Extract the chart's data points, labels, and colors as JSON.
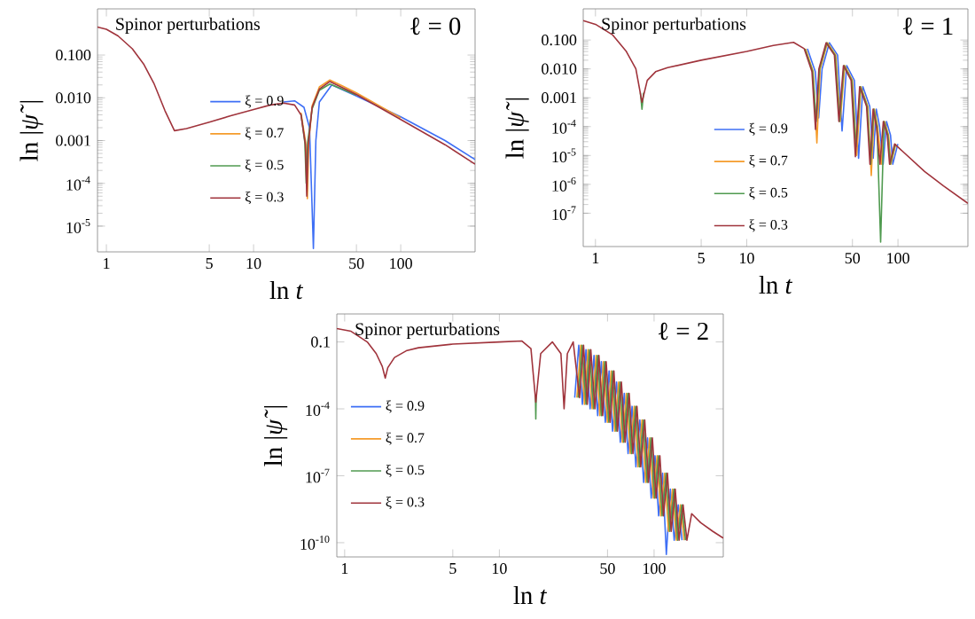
{
  "chart_data": [
    {
      "type": "line",
      "xlabel": "ln *t*",
      "ylabel": "ln |*ψ̃*|",
      "log": "xy",
      "legend": "center",
      "grid": false,
      "annotations": [
        "Spinor perturbations",
        "ℓ = 0"
      ],
      "xlim": [
        0.87,
        320
      ],
      "ylim": [
        2.5e-06,
        1.2
      ],
      "xticks": [
        1,
        5,
        10,
        50,
        100
      ],
      "yticks": [
        {
          "value": 1e-05,
          "label": "10$^{-5}$"
        },
        {
          "value": 0.0001,
          "label": "10$^{-4}$"
        },
        {
          "value": 0.001,
          "label": "0.001"
        },
        {
          "value": 0.01,
          "label": "0.010"
        },
        {
          "value": 0.1,
          "label": "0.100"
        }
      ],
      "series": [
        {
          "name": "ξ = 0.9",
          "color": "#3e6ff5",
          "x": [
            16,
            19,
            22,
            24,
            25.5,
            26.5,
            28,
            34,
            50,
            100,
            200,
            320
          ],
          "values": [
            0.008,
            0.0085,
            0.006,
            0.002,
            3e-06,
            0.001,
            0.008,
            0.02,
            0.011,
            0.0036,
            0.001,
            0.00036
          ]
        },
        {
          "name": "ξ = 0.7",
          "color": "#f59b2a",
          "x": [
            21,
            22.6,
            23.2,
            23.7,
            25,
            28,
            33,
            40,
            50,
            100
          ],
          "values": [
            0.0045,
            0.0009,
            4.4e-05,
            0.0009,
            0.0065,
            0.018,
            0.026,
            0.019,
            0.013,
            0.0034
          ]
        },
        {
          "name": "ξ = 0.5",
          "color": "#4f9a4f",
          "x": [
            21,
            22.3,
            22.8,
            23.3,
            25,
            28,
            33,
            40,
            50
          ],
          "values": [
            0.0041,
            0.0009,
            0.0001,
            0.0009,
            0.0055,
            0.015,
            0.021,
            0.016,
            0.0115
          ]
        },
        {
          "name": "ξ = 0.3",
          "color": "#a0343c",
          "x": [
            0.87,
            1,
            1.2,
            1.5,
            1.8,
            2.1,
            2.5,
            2.9,
            3.5,
            5,
            7,
            10,
            13,
            16,
            19,
            21,
            22.5,
            23,
            23.5,
            25,
            28,
            33,
            50,
            100,
            200,
            320
          ],
          "values": [
            0.45,
            0.4,
            0.28,
            0.14,
            0.06,
            0.022,
            0.005,
            0.0017,
            0.0019,
            0.0027,
            0.0038,
            0.0053,
            0.0068,
            0.0075,
            0.0068,
            0.004,
            0.0008,
            5e-05,
            0.0008,
            0.006,
            0.016,
            0.024,
            0.012,
            0.0031,
            0.0008,
            0.00028
          ]
        }
      ]
    },
    {
      "type": "line",
      "xlabel": "ln *t*",
      "ylabel": "ln |*ψ̃*|",
      "log": "xy",
      "legend": "bottom",
      "grid": false,
      "annotations": [
        "Spinor perturbations",
        "ℓ = 1"
      ],
      "xlim": [
        0.83,
        290
      ],
      "ylim": [
        7e-09,
        1.2
      ],
      "xticks": [
        1,
        5,
        10,
        50,
        100
      ],
      "yticks": [
        {
          "value": 1e-07,
          "label": "10$^{-7}$"
        },
        {
          "value": 1e-06,
          "label": "10$^{-6}$"
        },
        {
          "value": 1e-05,
          "label": "10$^{-5}$"
        },
        {
          "value": 0.0001,
          "label": "10$^{-4}$"
        },
        {
          "value": 0.001,
          "label": "0.001"
        },
        {
          "value": 0.01,
          "label": "0.010"
        },
        {
          "value": 0.1,
          "label": "0.100"
        }
      ],
      "series": [
        {
          "name": "ξ = 0.9",
          "color": "#3e6ff5",
          "x": [
            25.2,
            28.4,
            29.9,
            31.5,
            35.2,
            39.9,
            42.7,
            45.8,
            51.5,
            54.9,
            58.6,
            65.1,
            68.6,
            71.9,
            75.6,
            79.8,
            84,
            89.3,
            92.4,
            99.8
          ],
          "values": [
            0.05,
            0.008,
            0.0002,
            0.01,
            0.08,
            0.03,
            7e-05,
            0.013,
            0.004,
            8e-06,
            0.0024,
            0.0005,
            8e-06,
            0.0004,
            0.0001,
            5e-06,
            0.00015,
            5e-05,
            5e-06,
            2.5e-05
          ]
        },
        {
          "name": "ξ = 0.7",
          "color": "#f59b2a",
          "x": [
            24.5,
            27.5,
            29.1,
            30.6,
            34.2,
            38.8,
            41.5,
            44.5,
            50,
            53.3,
            56.9,
            63.2,
            66.6,
            69.9,
            73.4,
            77.5,
            81.6,
            86.7,
            89.8,
            96.9
          ],
          "values": [
            0.05,
            0.008,
            2.7e-05,
            0.01,
            0.08,
            0.03,
            0.00015,
            0.013,
            0.004,
            1e-05,
            0.0024,
            0.0005,
            2e-06,
            0.0004,
            0.0001,
            5e-06,
            0.00015,
            5e-05,
            5e-06,
            2.5e-05
          ]
        },
        {
          "name": "ξ = 0.5",
          "color": "#4f9a4f",
          "x": [
            1.98,
            2.03,
            2.08,
            10,
            24.2,
            27.3,
            28.8,
            30.3,
            33.8,
            38.4,
            41.1,
            44,
            49.5,
            52.8,
            56.4,
            62.6,
            66,
            69.2,
            72.7,
            76.8,
            80.8,
            85.9,
            88.9,
            96
          ],
          "values": [
            0.0015,
            0.0004,
            0.0015,
            null,
            0.05,
            0.008,
            0.00015,
            0.01,
            0.08,
            0.03,
            0.00015,
            0.013,
            0.004,
            2e-05,
            0.0024,
            0.0005,
            5e-06,
            0.0004,
            0.0001,
            1e-08,
            0.00015,
            5e-05,
            5e-06,
            2.5e-05
          ]
        },
        {
          "name": "ξ = 0.3",
          "color": "#a0343c",
          "x": [
            0.83,
            1,
            1.3,
            1.6,
            1.85,
            2.03,
            2.2,
            2.5,
            3,
            5,
            10,
            15,
            20.4,
            24,
            27,
            28.5,
            30,
            33.5,
            38,
            40.7,
            43.6,
            49,
            52.3,
            55.8,
            62,
            65.3,
            68.5,
            72,
            76,
            80,
            85,
            88,
            95,
            150,
            200,
            290
          ],
          "values": [
            0.47,
            0.35,
            0.15,
            0.04,
            0.01,
            0.0007,
            0.004,
            0.008,
            0.011,
            0.02,
            0.04,
            0.065,
            0.083,
            0.05,
            0.008,
            8e-05,
            0.01,
            0.08,
            0.03,
            0.00015,
            0.013,
            0.004,
            9e-06,
            0.0024,
            0.0005,
            5e-06,
            0.0004,
            0.0001,
            5e-06,
            0.00015,
            5e-05,
            5e-06,
            2.5e-05,
            2.8e-06,
            8.8e-07,
            2.2e-07
          ]
        }
      ]
    },
    {
      "type": "line",
      "xlabel": "ln *t*",
      "ylabel": "ln |*ψ̃*|",
      "log": "xy",
      "legend": "left",
      "grid": false,
      "annotations": [
        "Spinor perturbations",
        "ℓ = 2"
      ],
      "xlim": [
        0.89,
        280
      ],
      "ylim": [
        2.3e-11,
        1.8
      ],
      "xticks": [
        1,
        5,
        10,
        50,
        100
      ],
      "yticks": [
        {
          "value": 1e-10,
          "label": "10$^{-10}$"
        },
        {
          "value": 1e-07,
          "label": "10$^{-7}$"
        },
        {
          "value": 0.0001,
          "label": "10$^{-4}$"
        },
        {
          "value": 0.1,
          "label": "0.1"
        }
      ],
      "series": [
        {
          "name": "ξ = 0.9",
          "color": "#3e6ff5",
          "x": [
            30.7,
            32.6,
            34.4,
            36.3,
            38.6,
            40.9,
            43.2,
            45.6,
            48.4,
            51.2,
            53.9,
            57.2,
            60.5,
            64.2,
            67.9,
            72.1,
            76.3,
            80.9,
            85.6,
            90.7,
            95.8,
            101.4,
            107,
            113.5,
            120,
            127.4,
            134.9,
            143.2,
            151.6
          ],
          "values": [
            0.00032,
            0.071,
            0.00016,
            0.045,
            0.0001,
            0.025,
            5e-05,
            0.013,
            2.5e-05,
            0.005,
            1e-05,
            0.0016,
            3.2e-06,
            0.0005,
            1e-06,
            0.00013,
            2.5e-07,
            3.2e-05,
            5e-08,
            5e-06,
            1e-08,
            7.9e-07,
            1.6e-09,
            1.3e-07,
            3e-11,
            2.5e-08,
            1.3e-10,
            5e-09,
            1.3e-10
          ]
        },
        {
          "name": "ξ = 0.7",
          "color": "#f59b2a",
          "x": [
            31.7,
            33.6,
            35.5,
            37.4,
            39.8,
            42.2,
            44.6,
            47,
            49.9,
            52.8,
            55.7,
            59,
            62.4,
            66.2,
            70.1,
            74.4,
            78.7,
            83.5,
            88.3,
            93.6,
            98.9,
            104.6,
            110.4,
            117.1,
            123.8,
            131.5,
            139.2,
            147.8,
            156.5
          ],
          "values": [
            0.00032,
            0.071,
            0.00016,
            0.045,
            0.0001,
            0.025,
            5e-05,
            0.013,
            2.5e-05,
            0.005,
            1e-05,
            0.0016,
            3.2e-06,
            0.0005,
            1e-06,
            0.00013,
            2.5e-07,
            3.2e-05,
            5e-08,
            5e-06,
            1e-08,
            7.9e-07,
            1.6e-09,
            1.3e-07,
            3.2e-10,
            2.5e-08,
            1.3e-10,
            5e-09,
            1.3e-10
          ]
        },
        {
          "name": "ξ = 0.5",
          "color": "#4f9a4f",
          "x": [
            17.1,
            17.2,
            17.3,
            25,
            32.3,
            34.3,
            36.3,
            38.2,
            40.7,
            43.1,
            45.6,
            48,
            51,
            53.9,
            56.8,
            60.3,
            63.7,
            67.6,
            71.5,
            76,
            80.4,
            85.3,
            90.2,
            95.6,
            100.9,
            106.8,
            112.7,
            119.6,
            126.4,
            134.3,
            142.1,
            150.9,
            159.7
          ],
          "values": [
            0.0004,
            3.5e-05,
            0.0004,
            null,
            0.00032,
            0.071,
            0.00016,
            0.045,
            0.0001,
            0.025,
            5e-05,
            0.013,
            2.5e-05,
            0.005,
            1e-05,
            0.0016,
            3.2e-06,
            0.0005,
            1e-06,
            0.00013,
            2.5e-07,
            3.2e-05,
            5e-08,
            5e-06,
            1e-08,
            7.9e-07,
            1.6e-09,
            1.3e-07,
            3.2e-10,
            2.5e-08,
            1.3e-10,
            5e-09,
            1.3e-10
          ]
        },
        {
          "name": "ξ = 0.3",
          "color": "#a0343c",
          "x": [
            0.89,
            1.1,
            1.4,
            1.6,
            1.75,
            1.83,
            1.9,
            2.1,
            2.5,
            3,
            5,
            10,
            14,
            16,
            17.2,
            18.5,
            22,
            25,
            26.2,
            27.5,
            30,
            33,
            35,
            37,
            39,
            41.5,
            44,
            46.5,
            49,
            52,
            55,
            58,
            61.5,
            65,
            69,
            73,
            77.5,
            82,
            87,
            92,
            97.5,
            103,
            109,
            115,
            122,
            129,
            137,
            145,
            154,
            163,
            175,
            200,
            240,
            280
          ],
          "values": [
            0.4,
            0.3,
            0.1,
            0.03,
            0.008,
            0.0024,
            0.007,
            0.02,
            0.04,
            0.055,
            0.08,
            0.1,
            0.11,
            0.05,
            0.0002,
            0.03,
            0.1,
            0.03,
            0.0001,
            0.03,
            0.1,
            0.00032,
            0.071,
            0.00016,
            0.045,
            0.0001,
            0.025,
            5e-05,
            0.013,
            2.5e-05,
            0.005,
            1e-05,
            0.0016,
            3.2e-06,
            0.0005,
            1e-06,
            0.00013,
            2.5e-07,
            3.2e-05,
            5e-08,
            5e-06,
            1e-08,
            7.9e-07,
            1.6e-09,
            1.3e-07,
            3.2e-10,
            2.5e-08,
            1.3e-10,
            5e-09,
            1.3e-10,
            2e-09,
            7.9e-10,
            3.2e-10,
            1.6e-10
          ]
        }
      ]
    }
  ]
}
